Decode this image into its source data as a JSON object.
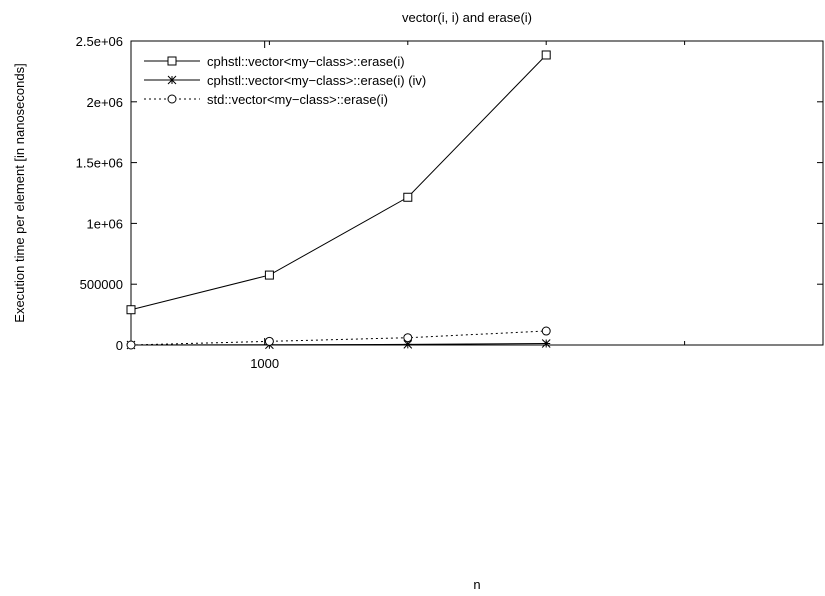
{
  "chart_data": {
    "type": "line",
    "title": "vector(i, i) and erase(i)",
    "xlabel": "n",
    "ylabel": "Execution time per element [in nanoseconds]",
    "x_scale": "log",
    "xlim": [
      512,
      16384
    ],
    "ylim": [
      0,
      2500000
    ],
    "x_ticks": [
      {
        "value": 1000,
        "label": "1000"
      }
    ],
    "y_ticks": [
      {
        "value": 0,
        "label": "0"
      },
      {
        "value": 500000,
        "label": "500000"
      },
      {
        "value": 1000000,
        "label": "1e+06"
      },
      {
        "value": 1500000,
        "label": "1.5e+06"
      },
      {
        "value": 2000000,
        "label": "2e+06"
      },
      {
        "value": 2500000,
        "label": "2.5e+06"
      }
    ],
    "grid": false,
    "legend_position": "top-left",
    "series": [
      {
        "name": "cphstl::vector<my−class>::erase(i)",
        "marker": "square",
        "line": "solid",
        "x": [
          512,
          1024,
          2048,
          4096
        ],
        "y": [
          290000,
          575000,
          1215000,
          2385000
        ]
      },
      {
        "name": "cphstl::vector<my−class>::erase(i) (iv)",
        "marker": "star",
        "line": "solid",
        "x": [
          512,
          1024,
          2048,
          4096
        ],
        "y": [
          0,
          2000,
          5000,
          12000
        ]
      },
      {
        "name": "std::vector<my−class>::erase(i)",
        "marker": "circle",
        "line": "dotted",
        "x": [
          512,
          1024,
          2048,
          4096
        ],
        "y": [
          0,
          30000,
          60000,
          115000
        ]
      }
    ]
  }
}
